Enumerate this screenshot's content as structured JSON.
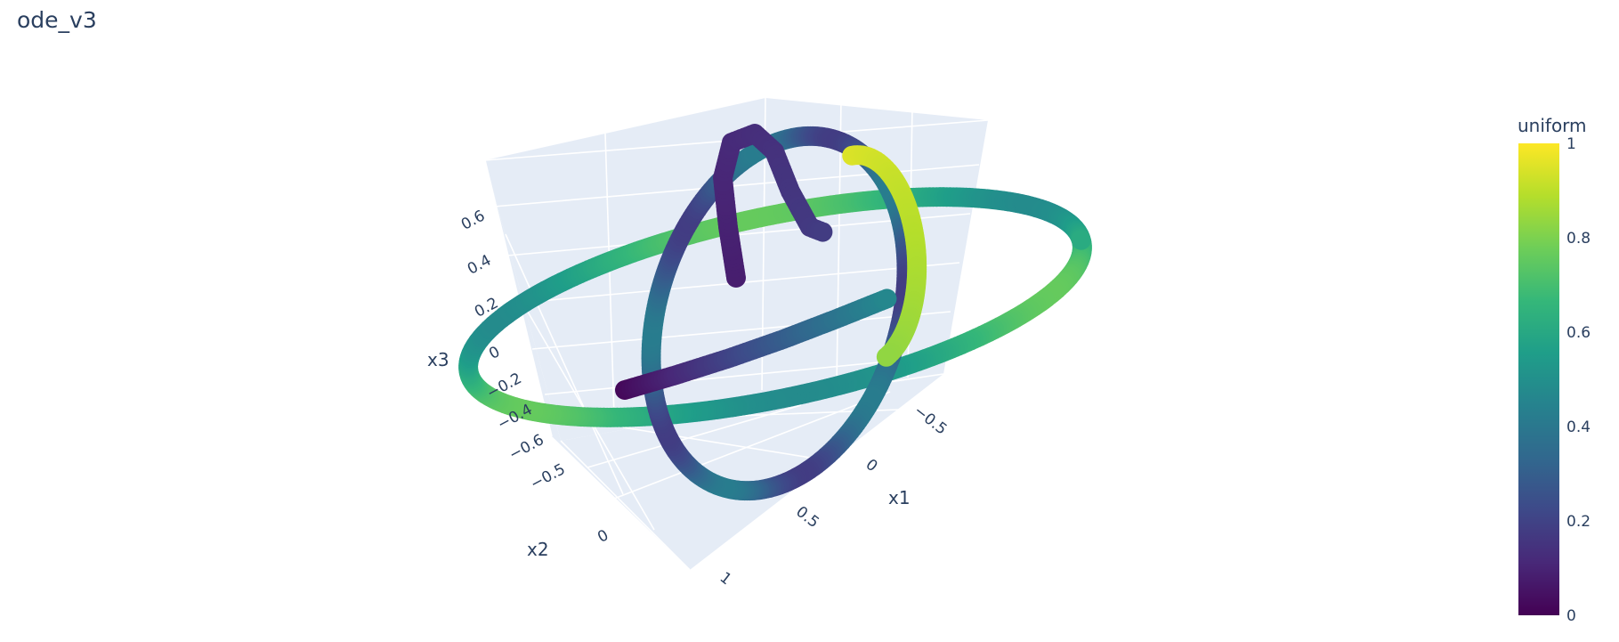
{
  "chart_data": {
    "type": "scatter3d",
    "title": "ode_v3",
    "axes": {
      "x1": {
        "label": "x1",
        "ticks": [
          "−0.5",
          "0",
          "0.5",
          "1"
        ]
      },
      "x2": {
        "label": "x2",
        "ticks": [
          "−0.5",
          "0"
        ]
      },
      "x3": {
        "label": "x3",
        "ticks": [
          "−0.6",
          "−0.4",
          "−0.2",
          "0",
          "0.2",
          "0.4",
          "0.6"
        ]
      }
    },
    "colorbar": {
      "title": "uniform",
      "colorscale": "Viridis",
      "range": [
        0,
        1
      ],
      "ticks": [
        "0",
        "0.2",
        "0.4",
        "0.6",
        "0.8",
        "1"
      ]
    },
    "background_color": "#e5ecf6",
    "grid": true,
    "marker_style": "large round markers forming a continuous 3D trajectory (closed loops)"
  }
}
